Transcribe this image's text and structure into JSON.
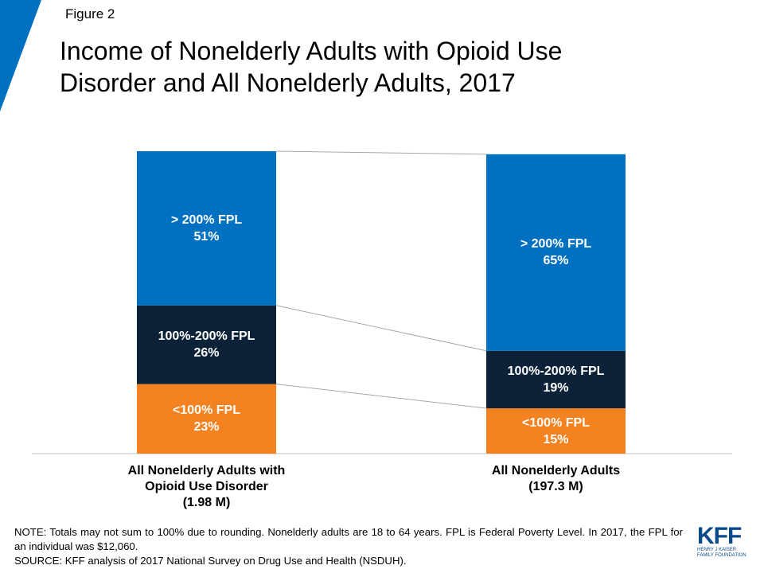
{
  "figure_label": "Figure 2",
  "chart_data": {
    "type": "stacked_bar",
    "title": "Income of Nonelderly Adults with Opioid Use\nDisorder and All Nonelderly Adults, 2017",
    "categories": [
      "All Nonelderly Adults with\nOpioid Use Disorder\n(1.98 M)",
      "All Nonelderly Adults\n(197.3 M)"
    ],
    "series": [
      {
        "name": "<100% FPL",
        "color": "#f58220",
        "values": [
          23,
          15
        ],
        "value_labels": [
          "23%",
          "15%"
        ]
      },
      {
        "name": "100%-200% FPL",
        "color": "#0b2239",
        "values": [
          26,
          19
        ],
        "value_labels": [
          "26%",
          "19%"
        ]
      },
      {
        "name": "> 200% FPL",
        "color": "#0070c0",
        "values": [
          51,
          65
        ],
        "value_labels": [
          "51%",
          "65%"
        ]
      }
    ],
    "ylim": [
      0,
      100
    ]
  },
  "notes": [
    "NOTE: Totals may not sum to 100% due to rounding. Nonelderly adults are 18 to 64 years. FPL is Federal Poverty Level. In 2017, the FPL for an individual was $12,060.",
    "SOURCE: KFF analysis of 2017 National Survey on Drug Use and Health (NSDUH)."
  ],
  "logo": {
    "mark": "KFF",
    "name": "HENRY J KAISER\nFAMILY FOUNDATION"
  }
}
